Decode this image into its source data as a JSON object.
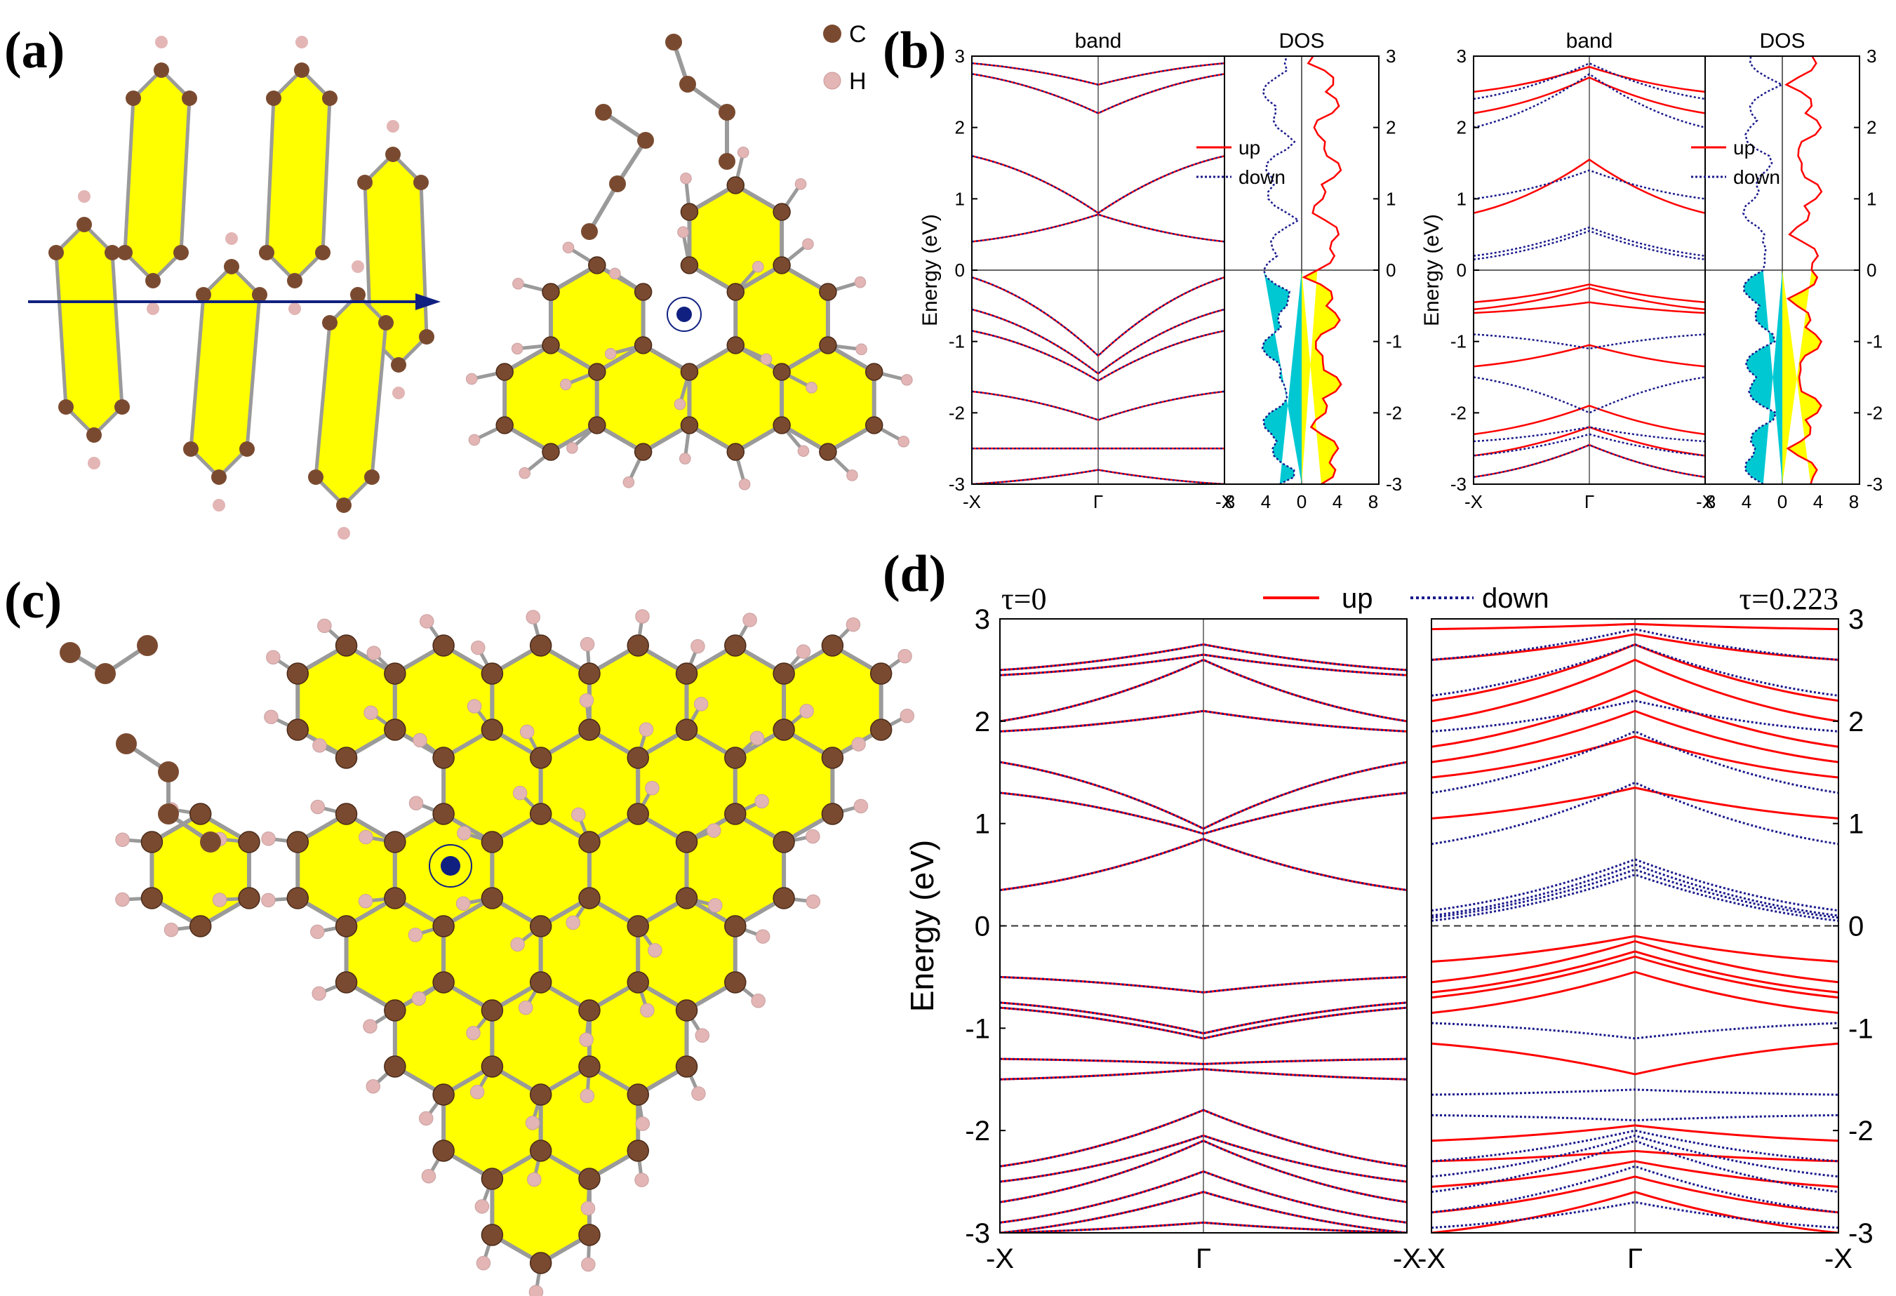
{
  "labels": {
    "a": "(a)",
    "b": "(b)",
    "c": "(c)",
    "d": "(d)"
  },
  "atom_legend": {
    "carbon": "C",
    "hydrogen": "H"
  },
  "colors": {
    "carbon": "#7a4a30",
    "hydrogen": "#e3b5b5",
    "ring_fill": "#ffff00",
    "bond": "#9a9a9a",
    "spin_up": "#ff0000",
    "spin_down": "#1a1a8c",
    "dos_down_fill": "#00c8d2",
    "dos_up_fill": "#ffff00",
    "axis_arrow": "#102080"
  },
  "chart_data": [
    {
      "type": "line",
      "panel": "b-left",
      "title_band": "band",
      "title_dos": "DOS",
      "ylabel": "Energy (eV)",
      "ylim": [
        -3,
        3
      ],
      "yticks": [
        "3",
        "2",
        "1",
        "0",
        "-1",
        "-2",
        "-3"
      ],
      "yticks_right": [
        "3",
        "2",
        "1",
        "0",
        "-1",
        "-2",
        "-3"
      ],
      "xticks": [
        "-X",
        "Γ",
        "-X"
      ],
      "dos_xticks": [
        "8",
        "4",
        "0",
        "4",
        "8"
      ],
      "legend": {
        "up": "up",
        "down": "down"
      },
      "series": [
        {
          "name": "up",
          "bands_gamma": [
            2.6,
            2.2,
            0.8,
            0.78,
            -1.2,
            -1.45,
            -1.55,
            -2.1,
            -2.5,
            -2.8
          ],
          "bands_edge": [
            2.9,
            2.75,
            1.6,
            0.4,
            -0.1,
            -0.55,
            -0.85,
            -1.7,
            -2.5,
            -3.0
          ]
        },
        {
          "name": "down",
          "bands_gamma": [
            2.6,
            2.2,
            0.8,
            0.78,
            -1.2,
            -1.45,
            -1.55,
            -2.1,
            -2.5,
            -2.8
          ],
          "bands_edge": [
            2.9,
            2.75,
            1.6,
            0.4,
            -0.1,
            -0.55,
            -0.85,
            -1.7,
            -2.5,
            -3.0
          ]
        }
      ]
    },
    {
      "type": "line",
      "panel": "b-right",
      "title_band": "band",
      "title_dos": "DOS",
      "ylabel": "Energy (eV)",
      "ylim": [
        -3,
        3
      ],
      "yticks": [
        "3",
        "2",
        "1",
        "0",
        "-1",
        "-2",
        "-3"
      ],
      "yticks_right": [
        "3",
        "2",
        "1",
        "0",
        "-1",
        "-2",
        "-3"
      ],
      "xticks": [
        "-X",
        "Γ",
        "-X"
      ],
      "dos_xticks": [
        "8",
        "4",
        "0",
        "4",
        "8"
      ],
      "legend": {
        "up": "up",
        "down": "down"
      },
      "series": [
        {
          "name": "up",
          "bands_gamma": [
            2.85,
            2.7,
            1.55,
            -0.2,
            -0.25,
            -0.45,
            -1.05,
            -1.9,
            -2.2,
            -2.45
          ],
          "bands_edge": [
            2.5,
            2.2,
            0.8,
            -0.45,
            -0.55,
            -0.6,
            -1.35,
            -2.3,
            -2.6,
            -2.9
          ]
        },
        {
          "name": "down",
          "bands_gamma": [
            2.9,
            2.75,
            1.4,
            0.6,
            0.55,
            -1.1,
            -2.0,
            -2.2,
            -2.3,
            -2.45
          ],
          "bands_edge": [
            2.4,
            2.0,
            1.0,
            0.2,
            0.15,
            -0.9,
            -1.5,
            -2.4,
            -2.6,
            -2.9
          ]
        }
      ]
    },
    {
      "type": "line",
      "panel": "d-left",
      "title": "τ=0",
      "ylabel": "Energy (eV)",
      "ylim": [
        -3,
        3
      ],
      "yticks": [
        "3",
        "2",
        "1",
        "0",
        "-1",
        "-2",
        "-3"
      ],
      "xticks": [
        "-X",
        "Γ",
        "-X"
      ],
      "legend": {
        "up": "up",
        "down": "down"
      },
      "series": [
        {
          "name": "up",
          "bands_gamma": [
            2.75,
            2.65,
            2.6,
            2.1,
            0.95,
            0.9,
            0.85,
            -0.65,
            -1.05,
            -1.1,
            -1.35,
            -1.4,
            -1.8,
            -2.05,
            -2.1,
            -2.4,
            -2.6,
            -2.9
          ],
          "bands_edge": [
            2.5,
            2.45,
            2.0,
            1.9,
            1.6,
            1.3,
            0.35,
            -0.5,
            -0.75,
            -0.8,
            -1.3,
            -1.5,
            -2.35,
            -2.5,
            -2.7,
            -2.9,
            -3.0,
            -3.0
          ]
        },
        {
          "name": "down",
          "bands_gamma": [
            2.75,
            2.65,
            2.6,
            2.1,
            0.95,
            0.9,
            0.85,
            -0.65,
            -1.05,
            -1.1,
            -1.35,
            -1.4,
            -1.8,
            -2.05,
            -2.1,
            -2.4,
            -2.6,
            -2.9
          ],
          "bands_edge": [
            2.5,
            2.45,
            2.0,
            1.9,
            1.6,
            1.3,
            0.35,
            -0.5,
            -0.75,
            -0.8,
            -1.3,
            -1.5,
            -2.35,
            -2.5,
            -2.7,
            -2.9,
            -3.0,
            -3.0
          ]
        }
      ]
    },
    {
      "type": "line",
      "panel": "d-right",
      "title": "τ=0.223",
      "ylabel": "",
      "ylim": [
        -3,
        3
      ],
      "yticks_right": [
        "3",
        "2",
        "1",
        "0",
        "-1",
        "-2",
        "-3"
      ],
      "xticks": [
        "-X",
        "Γ",
        "-X"
      ],
      "series": [
        {
          "name": "up",
          "bands_gamma": [
            2.95,
            2.85,
            2.75,
            2.6,
            2.3,
            2.1,
            1.85,
            1.35,
            -0.1,
            -0.15,
            -0.25,
            -0.3,
            -0.45,
            -1.45,
            -1.95,
            -2.2,
            -2.3,
            -2.45,
            -2.6
          ],
          "bands_edge": [
            2.9,
            2.6,
            2.2,
            2.0,
            1.75,
            1.6,
            1.45,
            1.05,
            -0.35,
            -0.55,
            -0.65,
            -0.7,
            -0.85,
            -1.15,
            -2.1,
            -2.3,
            -2.55,
            -2.8,
            -3.0
          ]
        },
        {
          "name": "down",
          "bands_gamma": [
            2.9,
            2.75,
            2.2,
            1.9,
            1.4,
            0.65,
            0.6,
            0.55,
            0.5,
            -1.1,
            -1.6,
            -1.9,
            -2.0,
            -2.05,
            -2.1,
            -2.35,
            -2.7
          ],
          "bands_edge": [
            2.6,
            2.25,
            1.9,
            1.3,
            0.8,
            0.15,
            0.1,
            0.08,
            0.05,
            -0.95,
            -1.65,
            -1.85,
            -2.3,
            -2.45,
            -2.6,
            -2.8,
            -2.95
          ]
        }
      ]
    }
  ]
}
